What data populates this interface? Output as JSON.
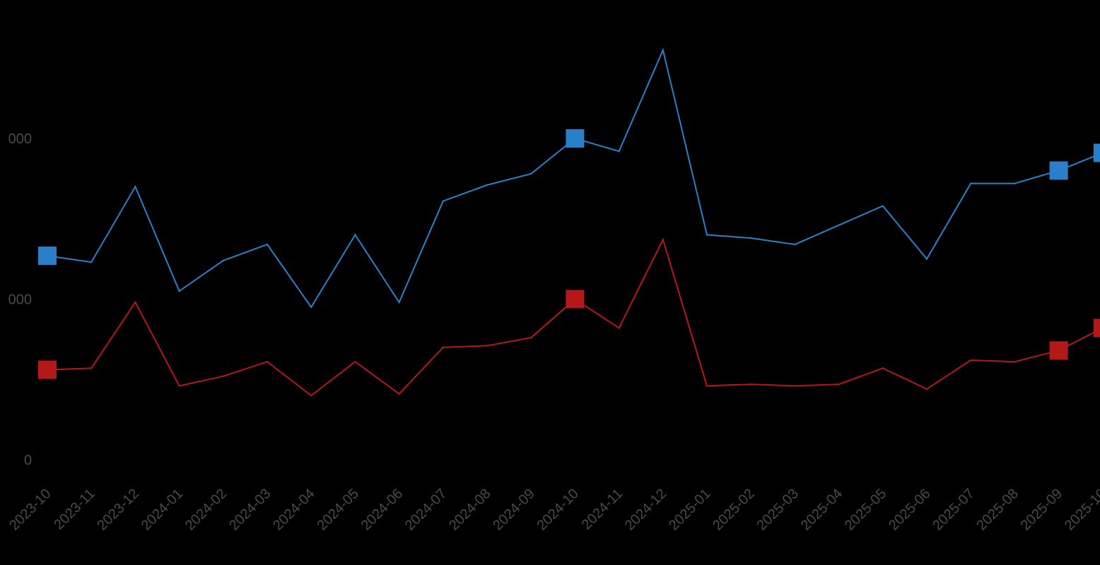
{
  "colors": {
    "background": "#000000",
    "tick_text": "#4a4a4a",
    "series_blue": "#2a80c8",
    "series_red": "#b41818"
  },
  "chart_data": {
    "type": "line",
    "title": "",
    "xlabel": "",
    "ylabel": "",
    "ylim": [
      0,
      2200
    ],
    "grid": false,
    "legend": "none",
    "x": [
      "2023-10",
      "2023-11",
      "2023-12",
      "2024-01",
      "2024-02",
      "2024-03",
      "2024-04",
      "2024-05",
      "2024-06",
      "2024-07",
      "2024-08",
      "2024-09",
      "2024-10",
      "2024-11",
      "2024-12",
      "2025-01",
      "2025-02",
      "2025-03",
      "2025-04",
      "2025-05",
      "2025-06",
      "2025-07",
      "2025-08",
      "2025-09",
      "2025-10"
    ],
    "yticks": [
      {
        "value": 0,
        "label": "0"
      },
      {
        "value": 1000,
        "label": "000"
      },
      {
        "value": 2000,
        "label": "000"
      }
    ],
    "series": [
      {
        "color": "#2a80c8",
        "marker_indices": [
          0,
          12,
          23,
          24
        ],
        "values": [
          1270,
          1230,
          1700,
          1050,
          1240,
          1340,
          950,
          1400,
          980,
          1610,
          1710,
          1780,
          2000,
          1920,
          2550,
          1400,
          1380,
          1340,
          1460,
          1580,
          1250,
          1720,
          1720,
          1800,
          1910
        ]
      },
      {
        "color": "#b41818",
        "marker_indices": [
          0,
          12,
          23,
          24
        ],
        "values": [
          560,
          570,
          980,
          460,
          520,
          610,
          400,
          610,
          410,
          700,
          710,
          760,
          1000,
          820,
          1370,
          460,
          470,
          460,
          470,
          570,
          440,
          620,
          610,
          680,
          820
        ]
      }
    ]
  }
}
